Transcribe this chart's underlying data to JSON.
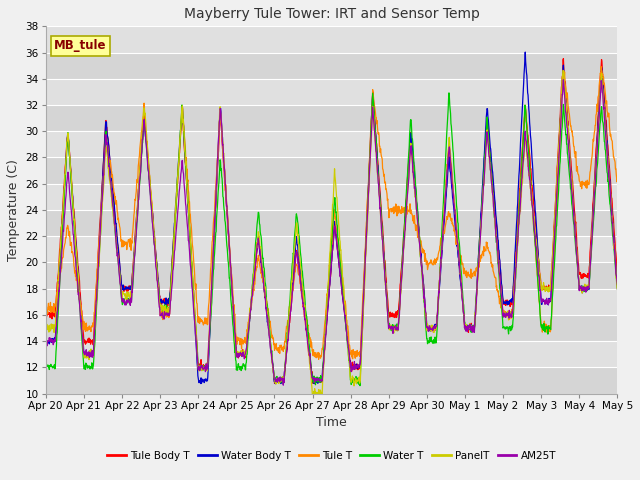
{
  "title": "Mayberry Tule Tower: IRT and Sensor Temp",
  "xlabel": "Time",
  "ylabel": "Temperature (C)",
  "ylim": [
    10,
    38
  ],
  "background_color": "#f0f0f0",
  "plot_bg_color": "#e0e0e0",
  "grid_color": "#ffffff",
  "station_label": "MB_tule",
  "station_box_facecolor": "#ffff99",
  "station_box_edgecolor": "#aaaa00",
  "station_text_color": "#880000",
  "legend_entries": [
    "Tule Body T",
    "Water Body T",
    "Tule T",
    "Water T",
    "PanelT",
    "AM25T"
  ],
  "line_colors": [
    "#ff0000",
    "#0000cc",
    "#ff8800",
    "#00cc00",
    "#cccc00",
    "#9900aa"
  ],
  "n_days": 15,
  "date_labels": [
    "Apr 20",
    "Apr 21",
    "Apr 22",
    "Apr 23",
    "Apr 24",
    "Apr 25",
    "Apr 26",
    "Apr 27",
    "Apr 28",
    "Apr 29",
    "Apr 30",
    "May 1",
    "May 2",
    "May 3",
    "May 4",
    "May 5"
  ],
  "points_per_day": 96,
  "linewidth": 0.9
}
